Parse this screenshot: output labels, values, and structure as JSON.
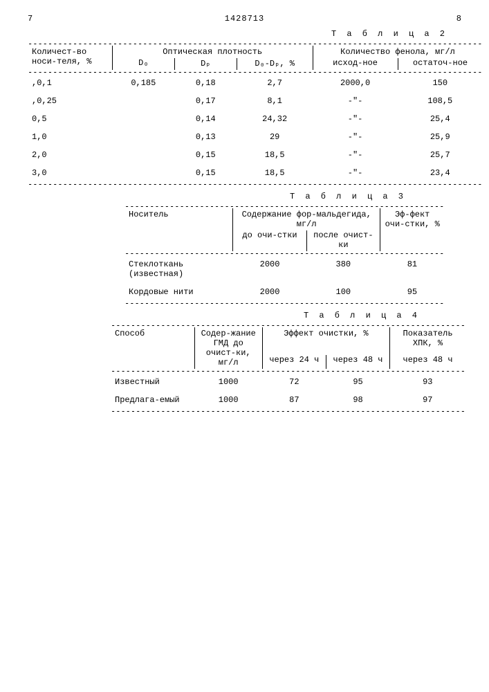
{
  "doc_number": "1428713",
  "page_left": "7",
  "page_right": "8",
  "table2": {
    "title": "Т а б л и ц а  2",
    "headers": {
      "carrier": "Количест-во носи-теля, %",
      "opt": "Оптическая плотность",
      "od_o": "D₀",
      "od_p": "Dₚ",
      "od_diff": "D₀-Dₚ, %",
      "phenol": "Количество фенола, мг/л",
      "initial": "исход-ное",
      "residual": "остаточ-ное"
    },
    "rows": [
      [
        ",0,1",
        "0,185",
        "0,18",
        "2,7",
        "2000,0",
        "150"
      ],
      [
        ",0,25",
        "",
        "0,17",
        "8,1",
        "-\"-",
        "108,5"
      ],
      [
        "0,5",
        "",
        "0,14",
        "24,32",
        "-\"-",
        "25,4"
      ],
      [
        "1,0",
        "",
        "0,13",
        "29",
        "-\"-",
        "25,9"
      ],
      [
        "2,0",
        "",
        "0,15",
        "18,5",
        "-\"-",
        "25,7"
      ],
      [
        "3,0",
        "",
        "0,15",
        "18,5",
        "-\"-",
        "23,4"
      ]
    ]
  },
  "table3": {
    "title": "Т а б л и ц а  3",
    "headers": {
      "carrier": "Носитель",
      "form": "Содержание фор-мальдегида, мг/л",
      "before": "до очи-стки",
      "after": "после очист-ки",
      "eff": "Эф-фект очи-стки, %"
    },
    "rows": [
      [
        "Стеклоткань (известная)",
        "2000",
        "380",
        "81"
      ],
      [
        "Кордовые нити",
        "2000",
        "100",
        "95"
      ]
    ]
  },
  "table4": {
    "title": "Т а б л и ц а  4",
    "headers": {
      "method": "Способ",
      "gmd": "Содер-жание ГМД до очист-ки, мг/л",
      "eff": "Эффект очистки, %",
      "after24": "через 24 ч",
      "after48": "через 48 ч",
      "xpk": "Показатель ХПК, %",
      "xpk48": "через 48 ч"
    },
    "rows": [
      [
        "Известный",
        "1000",
        "72",
        "95",
        "93"
      ],
      [
        "Предлага-емый",
        "1000",
        "87",
        "98",
        "97"
      ]
    ]
  },
  "style": {
    "font": "Courier New",
    "base_fontsize_pt": 12,
    "text_color": "#000000",
    "background_color": "#ffffff",
    "dash_char": "-"
  }
}
